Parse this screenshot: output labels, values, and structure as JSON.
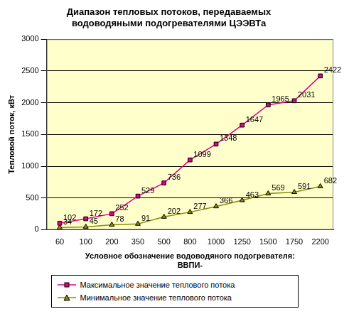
{
  "chart_data": {
    "type": "line",
    "title": [
      "Диапазон тепловых потоков, передаваемых",
      "водоводяными подогревателями ЦЭЭВТа"
    ],
    "x_label": [
      "Условное обозначение водоводяного подогревателя:",
      "ВВПИ-"
    ],
    "y_label": "Тепловой поток, кВт",
    "categories": [
      "60",
      "100",
      "200",
      "350",
      "500",
      "800",
      "1000",
      "1250",
      "1500",
      "1750",
      "2200"
    ],
    "series": [
      {
        "name": "Максимальное значение теплового потока",
        "color": "#e0008a",
        "marker": "square",
        "values": [
          102,
          172,
          252,
          529,
          736,
          1099,
          1348,
          1647,
          1965,
          2031,
          2422
        ]
      },
      {
        "name": "Минимальное значение теплового потока",
        "color": "#8c8c00",
        "marker": "triangle",
        "values": [
          34,
          45,
          78,
          91,
          202,
          277,
          366,
          463,
          569,
          591,
          682
        ]
      }
    ],
    "ylim": [
      0,
      3000
    ],
    "yticks": [
      0,
      500,
      1000,
      1500,
      2000,
      2500,
      3000
    ],
    "grid": true,
    "legend": "bottom",
    "data_labels": true
  }
}
